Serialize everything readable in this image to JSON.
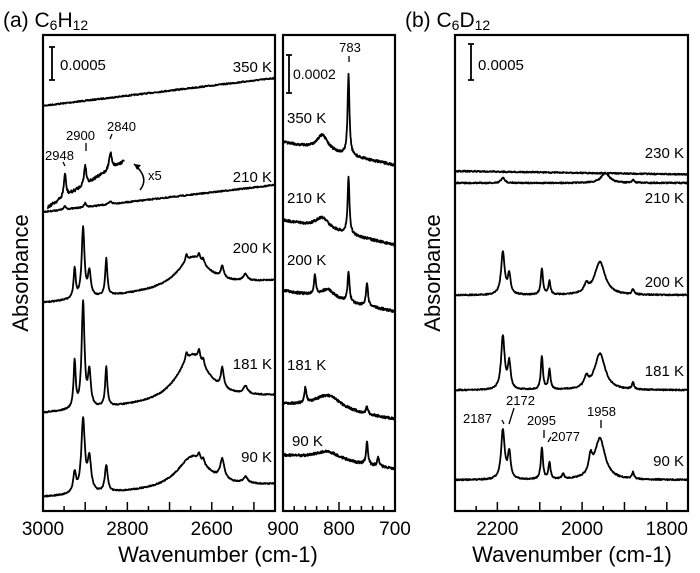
{
  "panel_a_title": {
    "prefix": "(a) C",
    "n1": "6",
    "mid": "H",
    "n2": "12"
  },
  "panel_b_title": {
    "prefix": "(b) C",
    "n1": "6",
    "mid": "D",
    "n2": "12"
  },
  "chart_data": [
    {
      "type": "line",
      "panel": "a-left",
      "xlabel": "Wavenumber (cm-1)",
      "ylabel": "Absorbance",
      "xlim": [
        3000,
        2450
      ],
      "x_ticks": [
        "3000",
        "2800",
        "2600"
      ],
      "scale_bar": "0.0005",
      "scale_bar_value": 0.0005,
      "annotations": [
        "2948",
        "2900",
        "2840",
        "x5"
      ],
      "series": [
        {
          "name": "350 K",
          "start": 0.00614,
          "end": 0.00656,
          "peaks": []
        },
        {
          "name": "210 K",
          "start": 0.00453,
          "end": 0.00494,
          "peaks": [
            [
              2948,
              5e-05,
              3
            ],
            [
              2900,
              6e-05,
              3
            ],
            [
              2840,
              4e-05,
              4
            ]
          ]
        },
        {
          "name": "x5",
          "start": 0.0046,
          "end": 0.0053,
          "xrange": [
            2990,
            2808
          ],
          "peaks": [
            [
              2948,
              0.00035,
              3
            ],
            [
              2900,
              0.0003,
              3
            ],
            [
              2840,
              0.00025,
              4
            ]
          ]
        },
        {
          "name": "200 K",
          "start": 0.00315,
          "end": 0.00348,
          "peaks": [
            [
              2925,
              0.00045,
              3
            ],
            [
              2905,
              0.00105,
              4
            ],
            [
              2890,
              0.00038,
              4
            ],
            [
              2850,
              0.00056,
              3
            ],
            [
              2645,
              0.00048,
              45
            ],
            [
              2660,
              0.0001,
              3
            ],
            [
              2630,
              0.0001,
              3
            ],
            [
              2620,
              8e-05,
              3
            ],
            [
              2575,
              0.00018,
              4
            ],
            [
              2520,
              0.0001,
              6
            ]
          ]
        },
        {
          "name": "181 K",
          "start": 0.00148,
          "end": 0.00173,
          "peaks": [
            [
              2925,
              0.0007,
              3
            ],
            [
              2905,
              0.0016,
              4
            ],
            [
              2890,
              0.00053,
              4
            ],
            [
              2850,
              0.0006,
              3
            ],
            [
              2645,
              0.00072,
              45
            ],
            [
              2660,
              0.00012,
              3
            ],
            [
              2630,
              0.00014,
              3
            ],
            [
              2620,
              0.0001,
              3
            ],
            [
              2575,
              0.0003,
              4
            ],
            [
              2520,
              0.00012,
              6
            ]
          ]
        },
        {
          "name": "90 K",
          "start": 0.00021,
          "end": 0.00039,
          "peaks": [
            [
              2925,
              0.0003,
              4
            ],
            [
              2905,
              0.0011,
              5
            ],
            [
              2890,
              0.0005,
              5
            ],
            [
              2850,
              0.0004,
              4
            ],
            [
              2645,
              0.0005,
              45
            ],
            [
              2630,
              0.0001,
              3
            ],
            [
              2620,
              8e-05,
              3
            ],
            [
              2575,
              0.0003,
              6
            ],
            [
              2520,
              0.0001,
              6
            ]
          ]
        }
      ]
    },
    {
      "type": "line",
      "panel": "a-right",
      "xlim": [
        900,
        700
      ],
      "x_ticks": [
        "900",
        "800",
        "700"
      ],
      "scale_bar": "0.0002",
      "scale_bar_value": 0.0002,
      "annotations": [
        "783"
      ],
      "series": [
        {
          "name": "350 K",
          "start": 0.00194,
          "end": 0.00182,
          "peaks": [
            [
              783,
              0.00042,
              2
            ],
            [
              830,
              8e-05,
              12
            ]
          ]
        },
        {
          "name": "210 K",
          "start": 0.00153,
          "end": 0.0014,
          "peaks": [
            [
              783,
              0.0003,
              2
            ],
            [
              830,
              6e-05,
              15
            ]
          ]
        },
        {
          "name": "200 K",
          "start": 0.00116,
          "end": 0.00105,
          "peaks": [
            [
              783,
              0.00016,
              2
            ],
            [
              750,
              0.00012,
              2
            ],
            [
              843,
              0.0001,
              2
            ],
            [
              820,
              5e-05,
              15
            ]
          ]
        },
        {
          "name": "181 K",
          "start": 0.00056,
          "end": 0.00048,
          "peaks": [
            [
              860,
              8e-05,
              2
            ],
            [
              820,
              8e-05,
              30
            ],
            [
              750,
              4e-05,
              2
            ]
          ]
        },
        {
          "name": "90 K",
          "start": 0.00029,
          "end": 0.00022,
          "peaks": [
            [
              750,
              0.00012,
              2
            ],
            [
              820,
              5e-05,
              30
            ],
            [
              730,
              5e-05,
              2
            ]
          ]
        }
      ]
    },
    {
      "type": "line",
      "panel": "b",
      "xlabel": "Wavenumber (cm-1)",
      "ylabel": "Absorbance",
      "xlim": [
        2300,
        1750
      ],
      "x_ticks": [
        "2200",
        "2000",
        "1800"
      ],
      "scale_bar": "0.0005",
      "scale_bar_value": 0.0005,
      "annotations": [
        "2187",
        "2172",
        "2095",
        "2077",
        "1958"
      ],
      "series": [
        {
          "name": "230 K",
          "start": 0.00515,
          "end": 0.0051,
          "peaks": []
        },
        {
          "name": "210 K",
          "start": 0.00497,
          "end": 0.00497,
          "peaks": [
            [
              2187,
              8e-05,
              5
            ],
            [
              1945,
              0.00015,
              12
            ],
            [
              1880,
              5e-05,
              3
            ]
          ]
        },
        {
          "name": "200 K",
          "start": 0.00327,
          "end": 0.00327,
          "peaks": [
            [
              2187,
              0.00064,
              5
            ],
            [
              2172,
              0.0003,
              4
            ],
            [
              2095,
              0.0004,
              3
            ],
            [
              2077,
              0.0002,
              3
            ],
            [
              1958,
              0.0005,
              15
            ],
            [
              1990,
              0.00012,
              6
            ],
            [
              1880,
              8e-05,
              3
            ]
          ]
        },
        {
          "name": "181 K",
          "start": 0.00183,
          "end": 0.00183,
          "peaks": [
            [
              2187,
              0.0008,
              5
            ],
            [
              2172,
              0.0004,
              4
            ],
            [
              2095,
              0.0005,
              3
            ],
            [
              2077,
              0.0003,
              3
            ],
            [
              1958,
              0.00055,
              15
            ],
            [
              1990,
              0.00015,
              6
            ],
            [
              1880,
              0.0001,
              3
            ]
          ]
        },
        {
          "name": "90 K",
          "start": 0.00047,
          "end": 0.00047,
          "peaks": [
            [
              2187,
              0.00075,
              5
            ],
            [
              2172,
              0.0004,
              4
            ],
            [
              2095,
              0.00048,
              3
            ],
            [
              2077,
              0.00025,
              3
            ],
            [
              1958,
              0.00062,
              15
            ],
            [
              1980,
              0.00025,
              5
            ],
            [
              2045,
              8e-05,
              3
            ],
            [
              1880,
              0.0001,
              3
            ]
          ]
        }
      ]
    }
  ]
}
